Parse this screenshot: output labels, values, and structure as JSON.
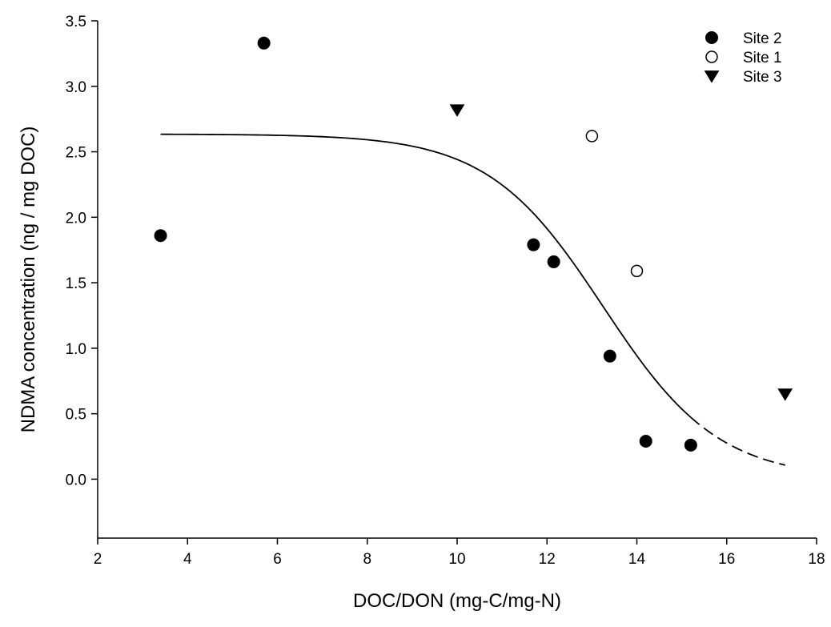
{
  "chart_data": {
    "type": "scatter",
    "title": "",
    "xlabel": "DOC/DON (mg-C/mg-N)",
    "ylabel": "NDMA concentration (ng / mg DOC)",
    "xlim": [
      2,
      18
    ],
    "ylim": [
      -0.45,
      3.5
    ],
    "xticks": [
      "2",
      "4",
      "6",
      "8",
      "10",
      "12",
      "14",
      "16",
      "18"
    ],
    "yticks": [
      "3.5",
      "3.0",
      "2.5",
      "2.0",
      "1.5",
      "1.0",
      "0.5",
      "0.0"
    ],
    "grid": false,
    "legend_position": "top-right",
    "series": [
      {
        "name": "Site 2",
        "marker": "filled-circle",
        "points": [
          {
            "x": 3.4,
            "y": 1.86
          },
          {
            "x": 5.7,
            "y": 3.33
          },
          {
            "x": 11.7,
            "y": 1.79
          },
          {
            "x": 12.15,
            "y": 1.66
          },
          {
            "x": 13.4,
            "y": 0.94
          },
          {
            "x": 14.2,
            "y": 0.29
          },
          {
            "x": 15.2,
            "y": 0.26
          }
        ]
      },
      {
        "name": "Site 1",
        "marker": "open-circle",
        "points": [
          {
            "x": 13.0,
            "y": 2.62
          },
          {
            "x": 14.0,
            "y": 1.59
          }
        ]
      },
      {
        "name": "Site 3",
        "marker": "filled-triangle-down",
        "points": [
          {
            "x": 10.0,
            "y": 2.82
          },
          {
            "x": 17.3,
            "y": 0.65
          }
        ]
      }
    ],
    "fit_curve": {
      "type": "sigmoid",
      "upper": 2.635,
      "lower": 0.0,
      "midpoint": 13.25,
      "slope": 0.78,
      "solid_range": [
        3.4,
        15.2
      ],
      "dashed_range": [
        15.2,
        17.3
      ],
      "color": "#000000"
    }
  }
}
